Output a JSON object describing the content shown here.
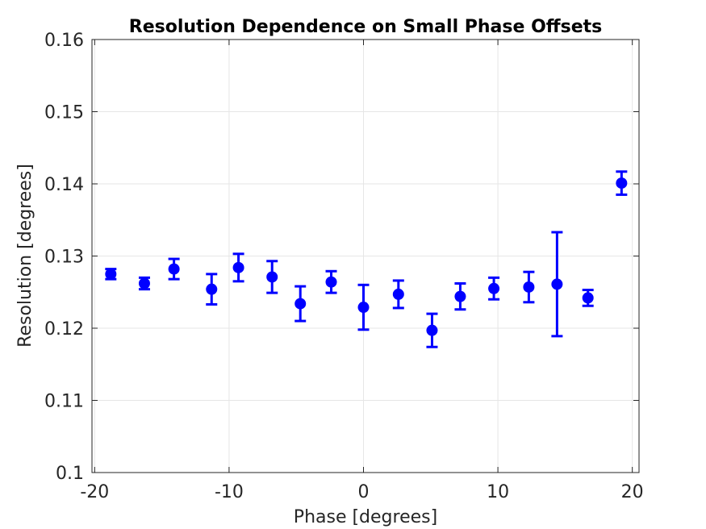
{
  "chart_data": {
    "type": "scatter",
    "title": "Resolution Dependence on Small Phase Offsets",
    "xlabel": "Phase [degrees]",
    "ylabel": "Resolution [degrees]",
    "xlim": [
      -20.2,
      20.5
    ],
    "ylim": [
      0.1,
      0.16
    ],
    "xticks": [
      -20,
      -10,
      0,
      10,
      20
    ],
    "xtick_labels": [
      "-20",
      "-10",
      "0",
      "10",
      "20"
    ],
    "yticks": [
      0.1,
      0.11,
      0.12,
      0.13,
      0.14,
      0.15,
      0.16
    ],
    "ytick_labels": [
      "0.1",
      "0.11",
      "0.12",
      "0.13",
      "0.14",
      "0.15",
      "0.16"
    ],
    "grid": true,
    "legend": "none",
    "marker_color": "#0000ff",
    "series": [
      {
        "x": [
          -18.8,
          -16.3,
          -14.1,
          -11.3,
          -9.3,
          -6.8,
          -4.7,
          -2.4,
          0.0,
          2.6,
          5.1,
          7.2,
          9.7,
          12.3,
          14.4,
          16.7,
          19.2
        ],
        "y": [
          0.1275,
          0.1262,
          0.1282,
          0.1254,
          0.1284,
          0.1271,
          0.1234,
          0.1264,
          0.1229,
          0.1247,
          0.1197,
          0.1244,
          0.1255,
          0.1257,
          0.1261,
          0.1242,
          0.1401
        ],
        "err": [
          0.0007,
          0.0008,
          0.0014,
          0.0021,
          0.0019,
          0.0022,
          0.0024,
          0.0015,
          0.0031,
          0.0019,
          0.0023,
          0.0018,
          0.0015,
          0.0021,
          0.0072,
          0.0011,
          0.0016
        ]
      }
    ]
  }
}
